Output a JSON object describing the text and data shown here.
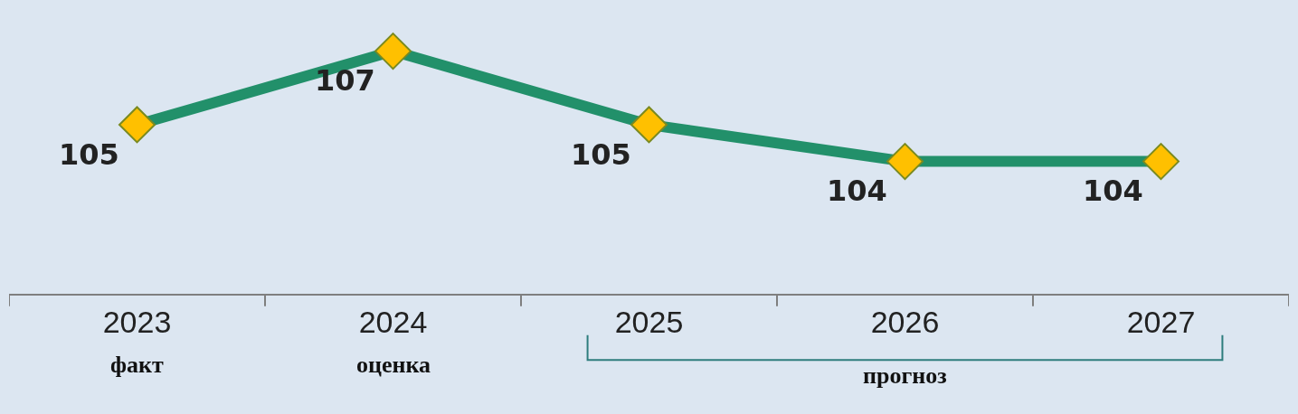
{
  "chart_data": {
    "type": "line",
    "categories": [
      "2023",
      "2024",
      "2025",
      "2026",
      "2027"
    ],
    "series": [
      {
        "color": "#22906a",
        "values": [
          105,
          107,
          105,
          104,
          104
        ]
      }
    ],
    "marker": "diamond",
    "data_labels": true,
    "legend": false,
    "grid": false,
    "annotations": [
      "факт",
      "оценка",
      "прогноз"
    ]
  }
}
